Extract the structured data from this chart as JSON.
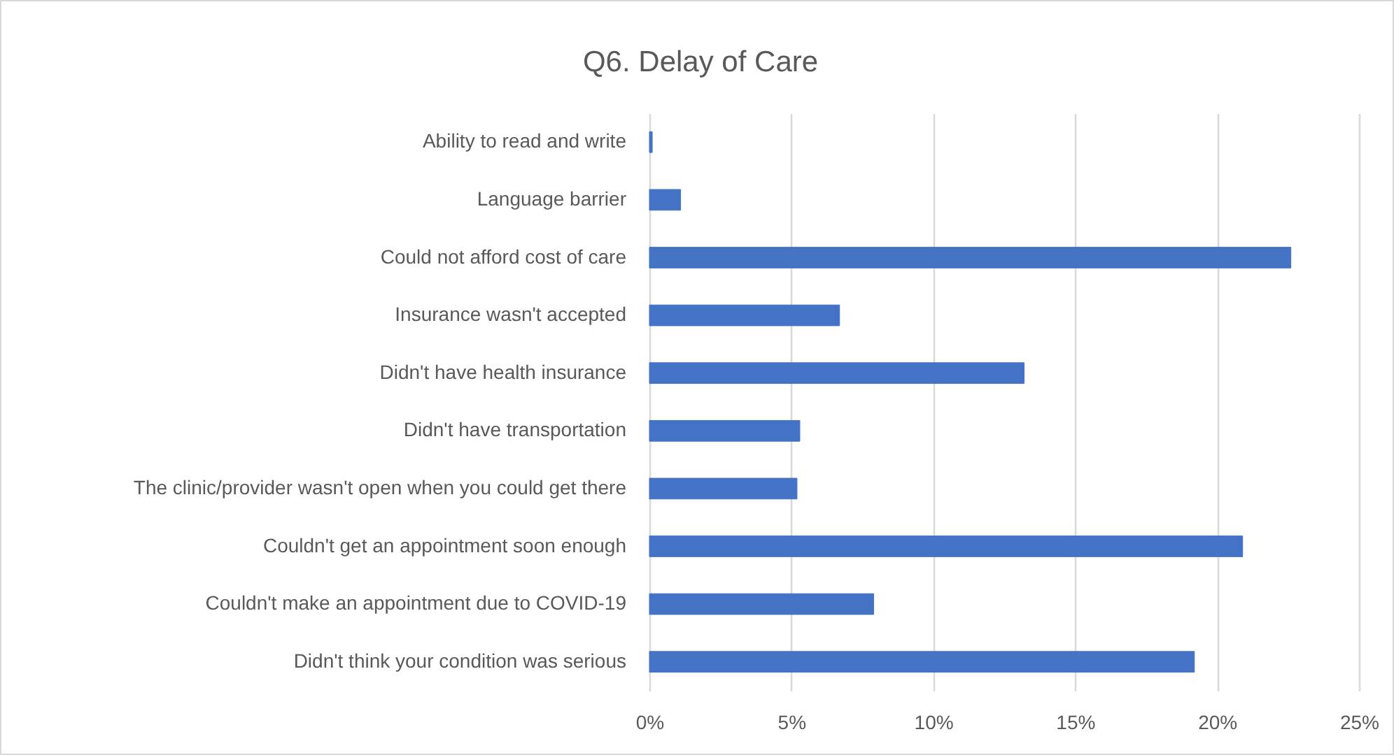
{
  "chart_data": {
    "type": "bar",
    "orientation": "horizontal",
    "title": "Q6. Delay of Care",
    "categories": [
      "Ability to read and write",
      "Language barrier",
      "Could not afford cost of care",
      "Insurance wasn't accepted",
      "Didn't have health insurance",
      "Didn't have transportation",
      "The clinic/provider wasn't open when you could get there",
      "Couldn't get an appointment soon enough",
      "Couldn't make an appointment due to COVID-19",
      "Didn't think your condition was serious"
    ],
    "values": [
      0.1,
      1.1,
      22.6,
      6.7,
      13.2,
      5.3,
      5.2,
      20.9,
      7.9,
      19.2
    ],
    "color": "#4472c4",
    "xlim": [
      0,
      25
    ],
    "xticks": [
      {
        "value": 0,
        "label": "0%"
      },
      {
        "value": 5,
        "label": "5%"
      },
      {
        "value": 10,
        "label": "10%"
      },
      {
        "value": 15,
        "label": "15%"
      },
      {
        "value": 20,
        "label": "20%"
      },
      {
        "value": 25,
        "label": "25%"
      }
    ],
    "grid": "x"
  }
}
